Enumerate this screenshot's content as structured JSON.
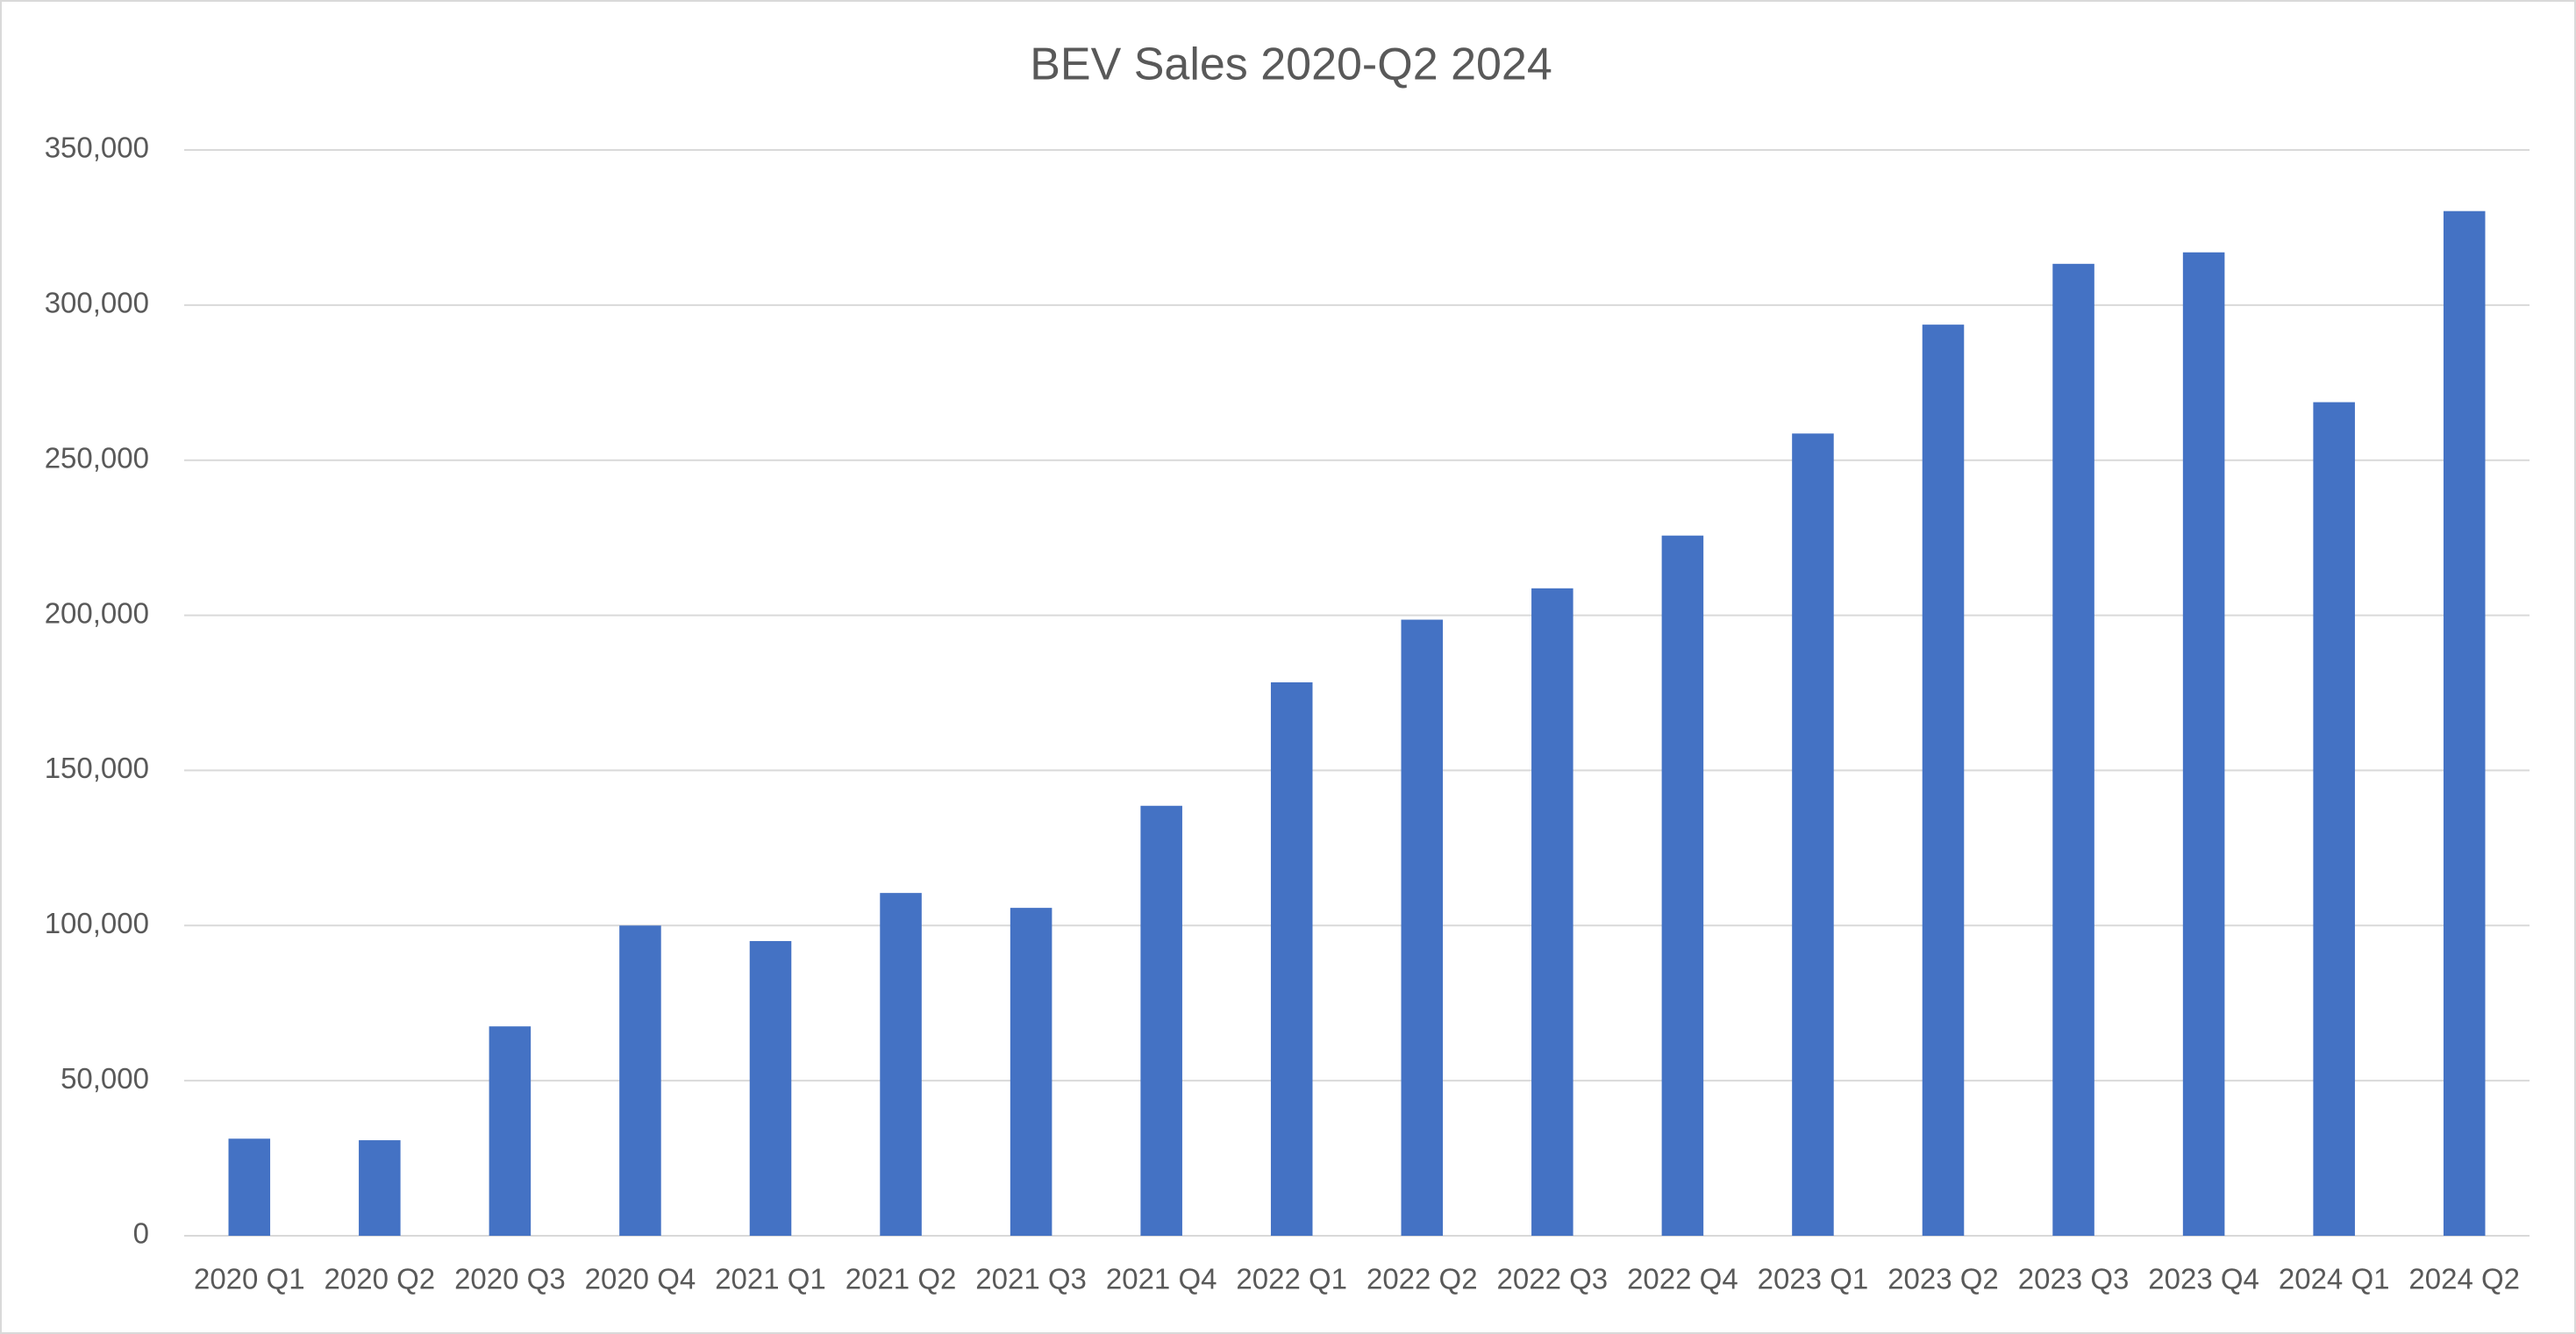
{
  "chart_data": {
    "type": "bar",
    "title": "BEV Sales 2020-Q2 2024",
    "categories": [
      "2020 Q1",
      "2020 Q2",
      "2020 Q3",
      "2020 Q4",
      "2021 Q1",
      "2021 Q2",
      "2021 Q3",
      "2021 Q4",
      "2022 Q1",
      "2022 Q2",
      "2022 Q3",
      "2022 Q4",
      "2023 Q1",
      "2023 Q2",
      "2023 Q3",
      "2023 Q4",
      "2024 Q1",
      "2024 Q2"
    ],
    "values": [
      31300,
      30800,
      67500,
      100000,
      95000,
      110500,
      105700,
      138600,
      178400,
      198600,
      208700,
      225700,
      258600,
      293700,
      313300,
      317000,
      268700,
      330300
    ],
    "color": "#4472c4",
    "ylim": [
      0,
      350000
    ],
    "yticks": [
      0,
      {
        "value": 50000,
        "label": "50,000"
      },
      {
        "value": 100000,
        "label": "100,000"
      },
      {
        "value": 150000,
        "label": "150,000"
      },
      {
        "value": 200000,
        "label": "200,000"
      },
      {
        "value": 250000,
        "label": "250,000"
      },
      {
        "value": 300000,
        "label": "300,000"
      },
      {
        "value": 350000,
        "label": "350,000"
      }
    ],
    "grid": true
  }
}
